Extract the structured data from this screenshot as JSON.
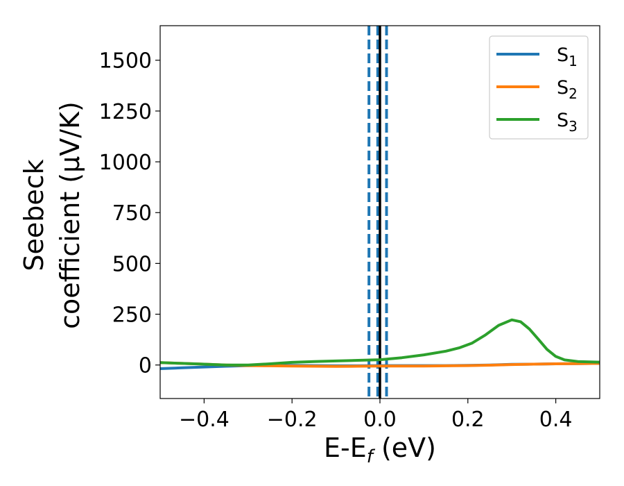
{
  "chart_data": {
    "type": "line",
    "xlabel": "E-E",
    "xlabel_sub": "f",
    "xlabel_unit": " (eV)",
    "ylabel_line1": "Seebeck",
    "ylabel_line2": "coefficient  (μV/K)",
    "xlim": [
      -0.5,
      0.5
    ],
    "ylim": [
      -165,
      1670
    ],
    "xticks": [
      -0.4,
      -0.2,
      0.0,
      0.2,
      0.4
    ],
    "xtick_labels": [
      "−0.4",
      "−0.2",
      "0.0",
      "0.2",
      "0.4"
    ],
    "yticks": [
      0,
      250,
      500,
      750,
      1000,
      1250,
      1500
    ],
    "ytick_labels": [
      "0",
      "250",
      "500",
      "750",
      "1000",
      "1250",
      "1500"
    ],
    "grid": false,
    "legend_position": "top-right",
    "series": [
      {
        "name": "S",
        "name_sub": "1",
        "color": "#1f77b4",
        "x": [
          -0.5,
          -0.45,
          -0.4,
          -0.35,
          -0.3,
          -0.25,
          -0.2,
          -0.15,
          -0.1,
          -0.05,
          0.0,
          0.05,
          0.1,
          0.15,
          0.2,
          0.25,
          0.3,
          0.35,
          0.4,
          0.45,
          0.5
        ],
        "y": [
          -18,
          -14,
          -10,
          -6,
          -3,
          -2,
          -2,
          -3,
          -4,
          -4,
          -3,
          -3,
          -3,
          -3,
          -2,
          0,
          3,
          4,
          6,
          7,
          8
        ]
      },
      {
        "name": "S",
        "name_sub": "2",
        "color": "#ff7f0e",
        "x": [
          -0.5,
          -0.45,
          -0.4,
          -0.35,
          -0.3,
          -0.25,
          -0.2,
          -0.15,
          -0.1,
          -0.05,
          0.0,
          0.05,
          0.1,
          0.15,
          0.2,
          0.25,
          0.3,
          0.35,
          0.4,
          0.45,
          0.5
        ],
        "y": [
          12,
          8,
          4,
          0,
          -3,
          -4,
          -5,
          -6,
          -7,
          -6,
          -5,
          -5,
          -5,
          -4,
          -3,
          -1,
          2,
          4,
          6,
          7,
          8
        ]
      },
      {
        "name": "S",
        "name_sub": "3",
        "color": "#2ca02c",
        "x": [
          -0.5,
          -0.45,
          -0.4,
          -0.35,
          -0.3,
          -0.25,
          -0.2,
          -0.15,
          -0.1,
          -0.05,
          0.0,
          0.05,
          0.1,
          0.15,
          0.18,
          0.21,
          0.24,
          0.27,
          0.3,
          0.32,
          0.34,
          0.36,
          0.38,
          0.4,
          0.42,
          0.45,
          0.5
        ],
        "y": [
          12,
          8,
          4,
          0,
          0,
          6,
          13,
          17,
          20,
          23,
          26,
          36,
          50,
          68,
          84,
          108,
          148,
          195,
          222,
          213,
          177,
          128,
          77,
          42,
          25,
          17,
          14
        ]
      }
    ],
    "vertical_lines": [
      {
        "x": -0.025,
        "color": "#1f77b4",
        "style": "dashed"
      },
      {
        "x": -0.005,
        "color": "#1f77b4",
        "style": "dashed"
      },
      {
        "x": 0.015,
        "color": "#1f77b4",
        "style": "dashed"
      },
      {
        "x": 0.0,
        "color": "#000000",
        "style": "solid"
      }
    ]
  }
}
